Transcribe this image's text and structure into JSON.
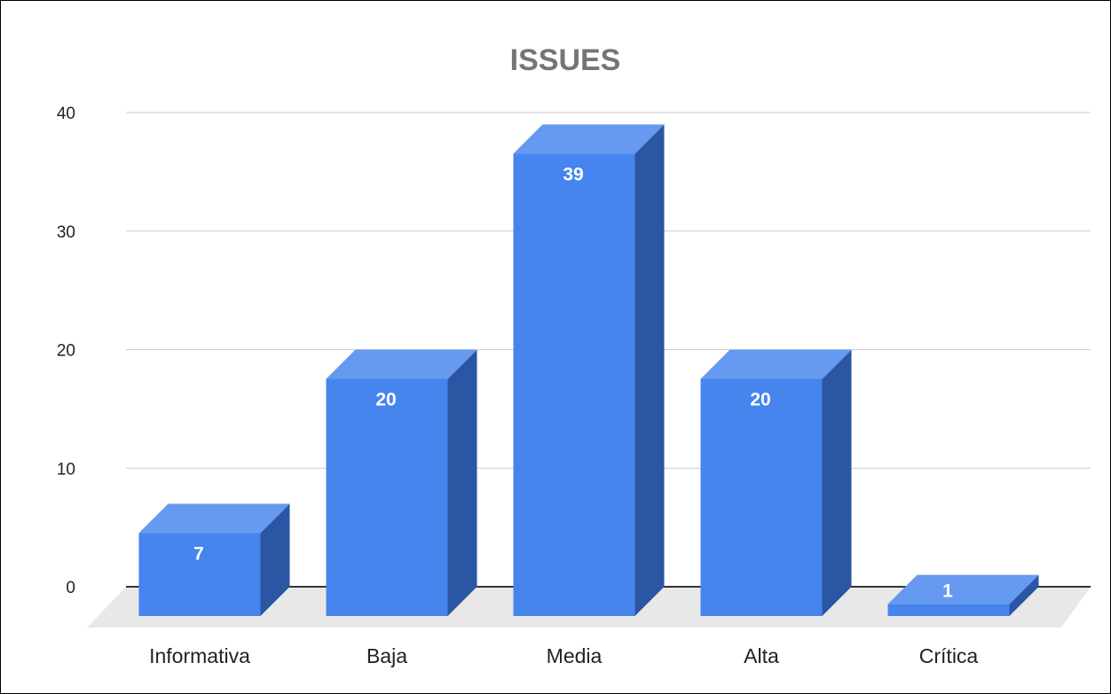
{
  "chart_data": {
    "type": "bar",
    "title": "ISSUES",
    "xlabel": "",
    "ylabel": "",
    "categories": [
      "Informativa",
      "Baja",
      "Media",
      "Alta",
      "Crítica"
    ],
    "values": [
      7,
      20,
      39,
      20,
      1
    ],
    "ylim": [
      0,
      40
    ],
    "yticks": [
      "0",
      "10",
      "20",
      "30",
      "40"
    ],
    "grid": true,
    "legend": "none",
    "style": "3d",
    "colors": {
      "bar_front": "#4684EE",
      "bar_top": "#6699F0",
      "bar_side": "#2A56A3",
      "floor": "#E8E8E8",
      "gridline": "#CCCCCC",
      "baseline": "#333333"
    }
  }
}
